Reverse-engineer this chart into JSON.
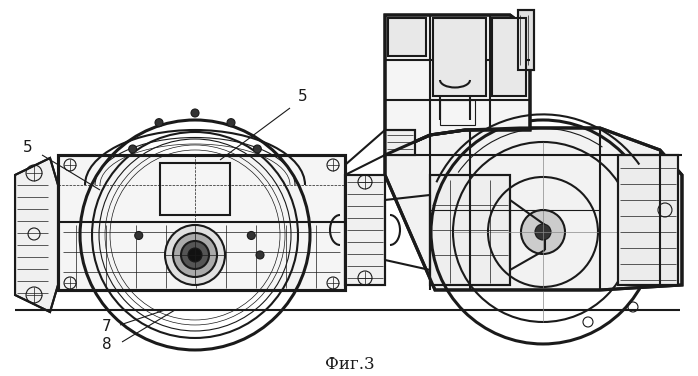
{
  "background_color": "#ffffff",
  "line_color": "#1a1a1a",
  "figure_label": "Фиг.3",
  "figsize": [
    6.98,
    3.76
  ],
  "dpi": 100
}
